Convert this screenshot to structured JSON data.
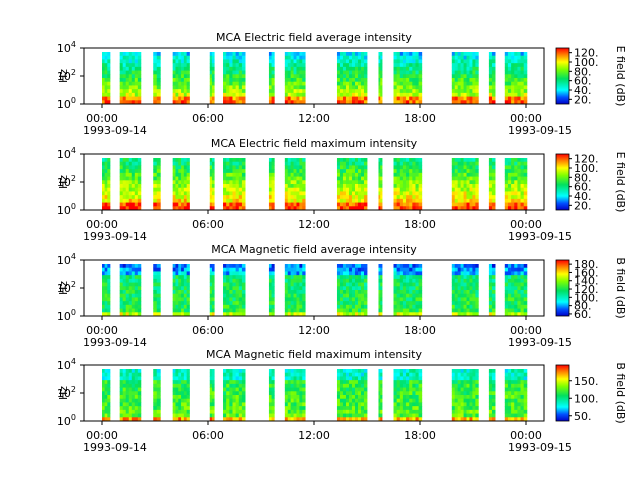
{
  "chart_data": [
    {
      "type": "heatmap",
      "title": "MCA  Electric field average intensity",
      "ylabel": "Hz",
      "yscale": "log",
      "y_ticks": [
        "10^0",
        "10^2",
        "10^4"
      ],
      "x_ticks": [
        "00:00",
        "06:00",
        "12:00",
        "18:00",
        "00:00"
      ],
      "x_date_start": "1993-09-14",
      "x_date_end": "1993-09-15",
      "colorbar_label": "E field (dB)",
      "colorbar_ticks": [
        "20.",
        "40.",
        "60.",
        "80.",
        "100.",
        "120."
      ],
      "colorbar_range": [
        10,
        130
      ],
      "data_intervals_hours": [
        [
          0.0,
          0.45
        ],
        [
          1.0,
          2.2
        ],
        [
          2.9,
          3.3
        ],
        [
          4.0,
          4.95
        ],
        [
          6.1,
          6.35
        ],
        [
          6.85,
          8.1
        ],
        [
          9.45,
          9.75
        ],
        [
          10.35,
          11.5
        ],
        [
          13.3,
          15.0
        ],
        [
          15.65,
          15.85
        ],
        [
          16.5,
          18.1
        ],
        [
          19.8,
          21.3
        ],
        [
          21.9,
          22.25
        ],
        [
          22.8,
          24.05
        ]
      ],
      "intensity_profile": "low frequencies ~100-120 dB, mid ~60-80 dB, high frequencies ~40-70 dB"
    },
    {
      "type": "heatmap",
      "title": "MCA  Electric field maximum intensity",
      "ylabel": "Hz",
      "yscale": "log",
      "y_ticks": [
        "10^0",
        "10^2",
        "10^4"
      ],
      "x_ticks": [
        "00:00",
        "06:00",
        "12:00",
        "18:00",
        "00:00"
      ],
      "x_date_start": "1993-09-14",
      "x_date_end": "1993-09-15",
      "colorbar_label": "E field (dB)",
      "colorbar_ticks": [
        "20.",
        "40.",
        "60.",
        "80.",
        "100.",
        "120."
      ],
      "colorbar_range": [
        10,
        130
      ],
      "data_intervals_hours": [
        [
          0.0,
          0.45
        ],
        [
          1.0,
          2.2
        ],
        [
          2.9,
          3.3
        ],
        [
          4.0,
          4.95
        ],
        [
          6.1,
          6.35
        ],
        [
          6.85,
          8.1
        ],
        [
          9.45,
          9.75
        ],
        [
          10.35,
          11.5
        ],
        [
          13.3,
          15.0
        ],
        [
          15.65,
          15.85
        ],
        [
          16.5,
          18.1
        ],
        [
          19.8,
          21.3
        ],
        [
          21.9,
          22.25
        ],
        [
          22.8,
          24.05
        ]
      ],
      "intensity_profile": "low frequencies ~110-125 dB, mid ~75-95 dB, high frequencies ~55-75 dB"
    },
    {
      "type": "heatmap",
      "title": "MCA  Magnetic field average intensity",
      "ylabel": "Hz",
      "yscale": "log",
      "y_ticks": [
        "10^0",
        "10^2",
        "10^4"
      ],
      "x_ticks": [
        "00:00",
        "06:00",
        "12:00",
        "18:00",
        "00:00"
      ],
      "x_date_start": "1993-09-14",
      "x_date_end": "1993-09-15",
      "colorbar_label": "B field (dB)",
      "colorbar_ticks": [
        "60.",
        "80.",
        "100.",
        "120.",
        "140.",
        "160.",
        "180."
      ],
      "colorbar_range": [
        55,
        190
      ],
      "data_intervals_hours": [
        [
          0.0,
          0.45
        ],
        [
          1.0,
          2.2
        ],
        [
          2.9,
          3.3
        ],
        [
          4.0,
          4.95
        ],
        [
          6.1,
          6.35
        ],
        [
          6.85,
          8.1
        ],
        [
          9.45,
          9.75
        ],
        [
          10.35,
          11.5
        ],
        [
          13.3,
          15.0
        ],
        [
          15.65,
          15.85
        ],
        [
          16.5,
          18.1
        ],
        [
          19.8,
          21.3
        ],
        [
          21.9,
          22.25
        ],
        [
          22.8,
          24.05
        ]
      ],
      "intensity_profile": "low frequencies ~140-170 dB, mid ~120-130 dB, high frequencies ~60-80 dB"
    },
    {
      "type": "heatmap",
      "title": "MCA  Magnetic field maximum intensity",
      "ylabel": "Hz",
      "yscale": "log",
      "y_ticks": [
        "10^0",
        "10^2",
        "10^4"
      ],
      "x_ticks": [
        "00:00",
        "06:00",
        "12:00",
        "18:00",
        "00:00"
      ],
      "x_date_start": "1993-09-14",
      "x_date_end": "1993-09-15",
      "colorbar_label": "B field (dB)",
      "colorbar_ticks": [
        "50.",
        "100.",
        "150."
      ],
      "colorbar_range": [
        35,
        195
      ],
      "data_intervals_hours": [
        [
          0.0,
          0.45
        ],
        [
          1.0,
          2.2
        ],
        [
          2.9,
          3.3
        ],
        [
          4.0,
          4.95
        ],
        [
          6.1,
          6.35
        ],
        [
          6.85,
          8.1
        ],
        [
          9.45,
          9.75
        ],
        [
          10.35,
          11.5
        ],
        [
          13.3,
          15.0
        ],
        [
          15.65,
          15.85
        ],
        [
          16.5,
          18.1
        ],
        [
          19.8,
          21.3
        ],
        [
          21.9,
          22.25
        ],
        [
          22.8,
          24.05
        ]
      ],
      "intensity_profile": "low frequencies ~160-185 dB, mid ~120-140 dB, high frequencies ~90-110 dB"
    }
  ]
}
